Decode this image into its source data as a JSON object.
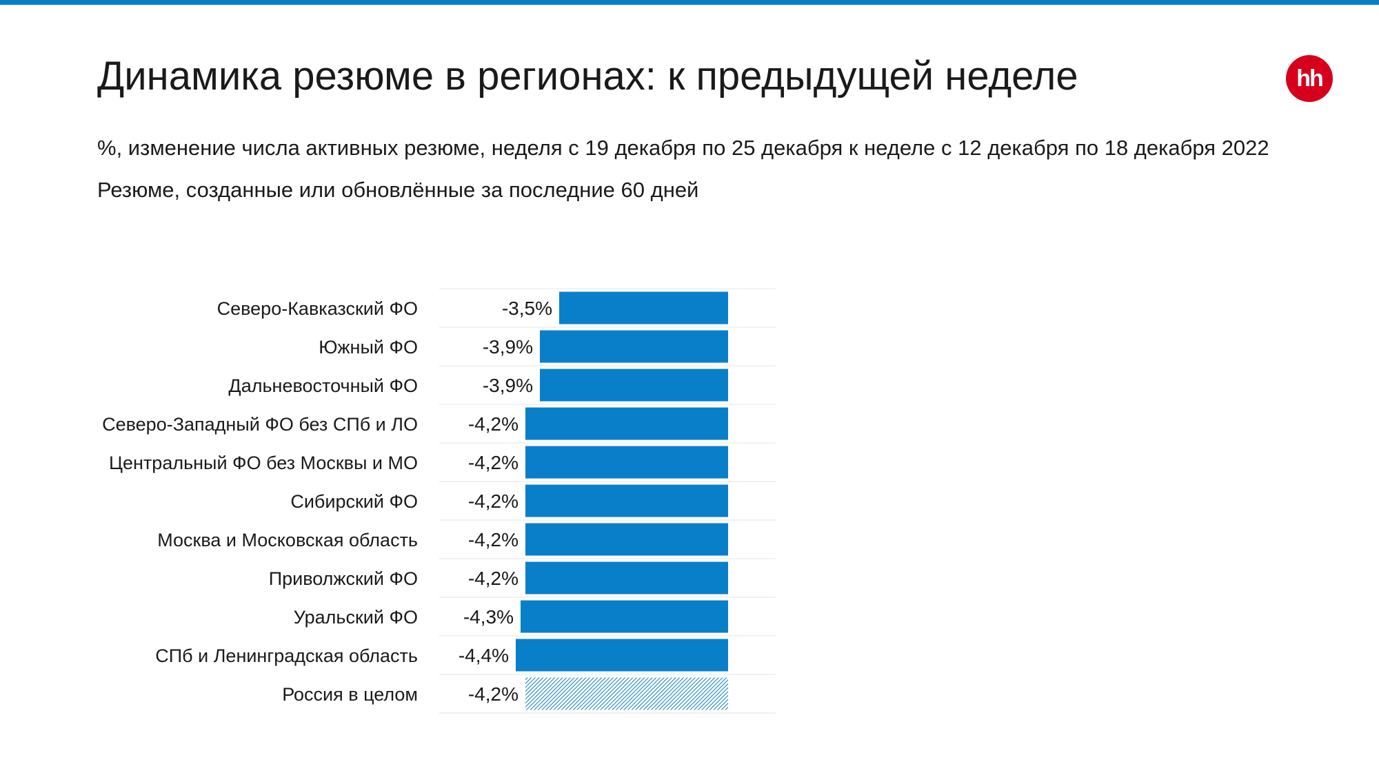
{
  "header": {
    "title": "Динамика резюме в регионах: к предыдущей неделе",
    "subtitle_1": "%, изменение числа активных резюме, неделя с 19 декабря по 25 декабря к неделе с 12 декабря по 18 декабря 2022",
    "subtitle_2": "Резюме, созданные или обновлённые за последние 60 дней"
  },
  "logo": {
    "text": "hh",
    "color": "#d6001c"
  },
  "colors": {
    "bar": "#0a7fc9",
    "total_hatch": "#0a7fc9",
    "top_rule": "#0a7fc9"
  },
  "chart_data": {
    "type": "bar",
    "orientation": "horizontal",
    "title": "",
    "xlabel": "",
    "ylabel": "",
    "categories": [
      "Северо-Кавказский ФО",
      "Южный ФО",
      "Дальневосточный ФО",
      "Северо-Западный ФО без СПб и ЛО",
      "Центральный ФО без Москвы и МО",
      "Сибирский ФО",
      "Москва и Московская область",
      "Приволжский ФО",
      "Уральский ФО",
      "СПб и Ленинградская область",
      "Россия в целом"
    ],
    "values": [
      -3.5,
      -3.9,
      -3.9,
      -4.2,
      -4.2,
      -4.2,
      -4.2,
      -4.2,
      -4.3,
      -4.4,
      -4.2
    ],
    "value_labels": [
      "-3,5%",
      "-3,9%",
      "-3,9%",
      "-4,2%",
      "-4,2%",
      "-4,2%",
      "-4,2%",
      "-4,2%",
      "-4,3%",
      "-4,4%",
      "-4,2%"
    ],
    "highlight": "Россия в целом",
    "highlight_style": "hatched",
    "grid": false,
    "row_separators": true
  }
}
